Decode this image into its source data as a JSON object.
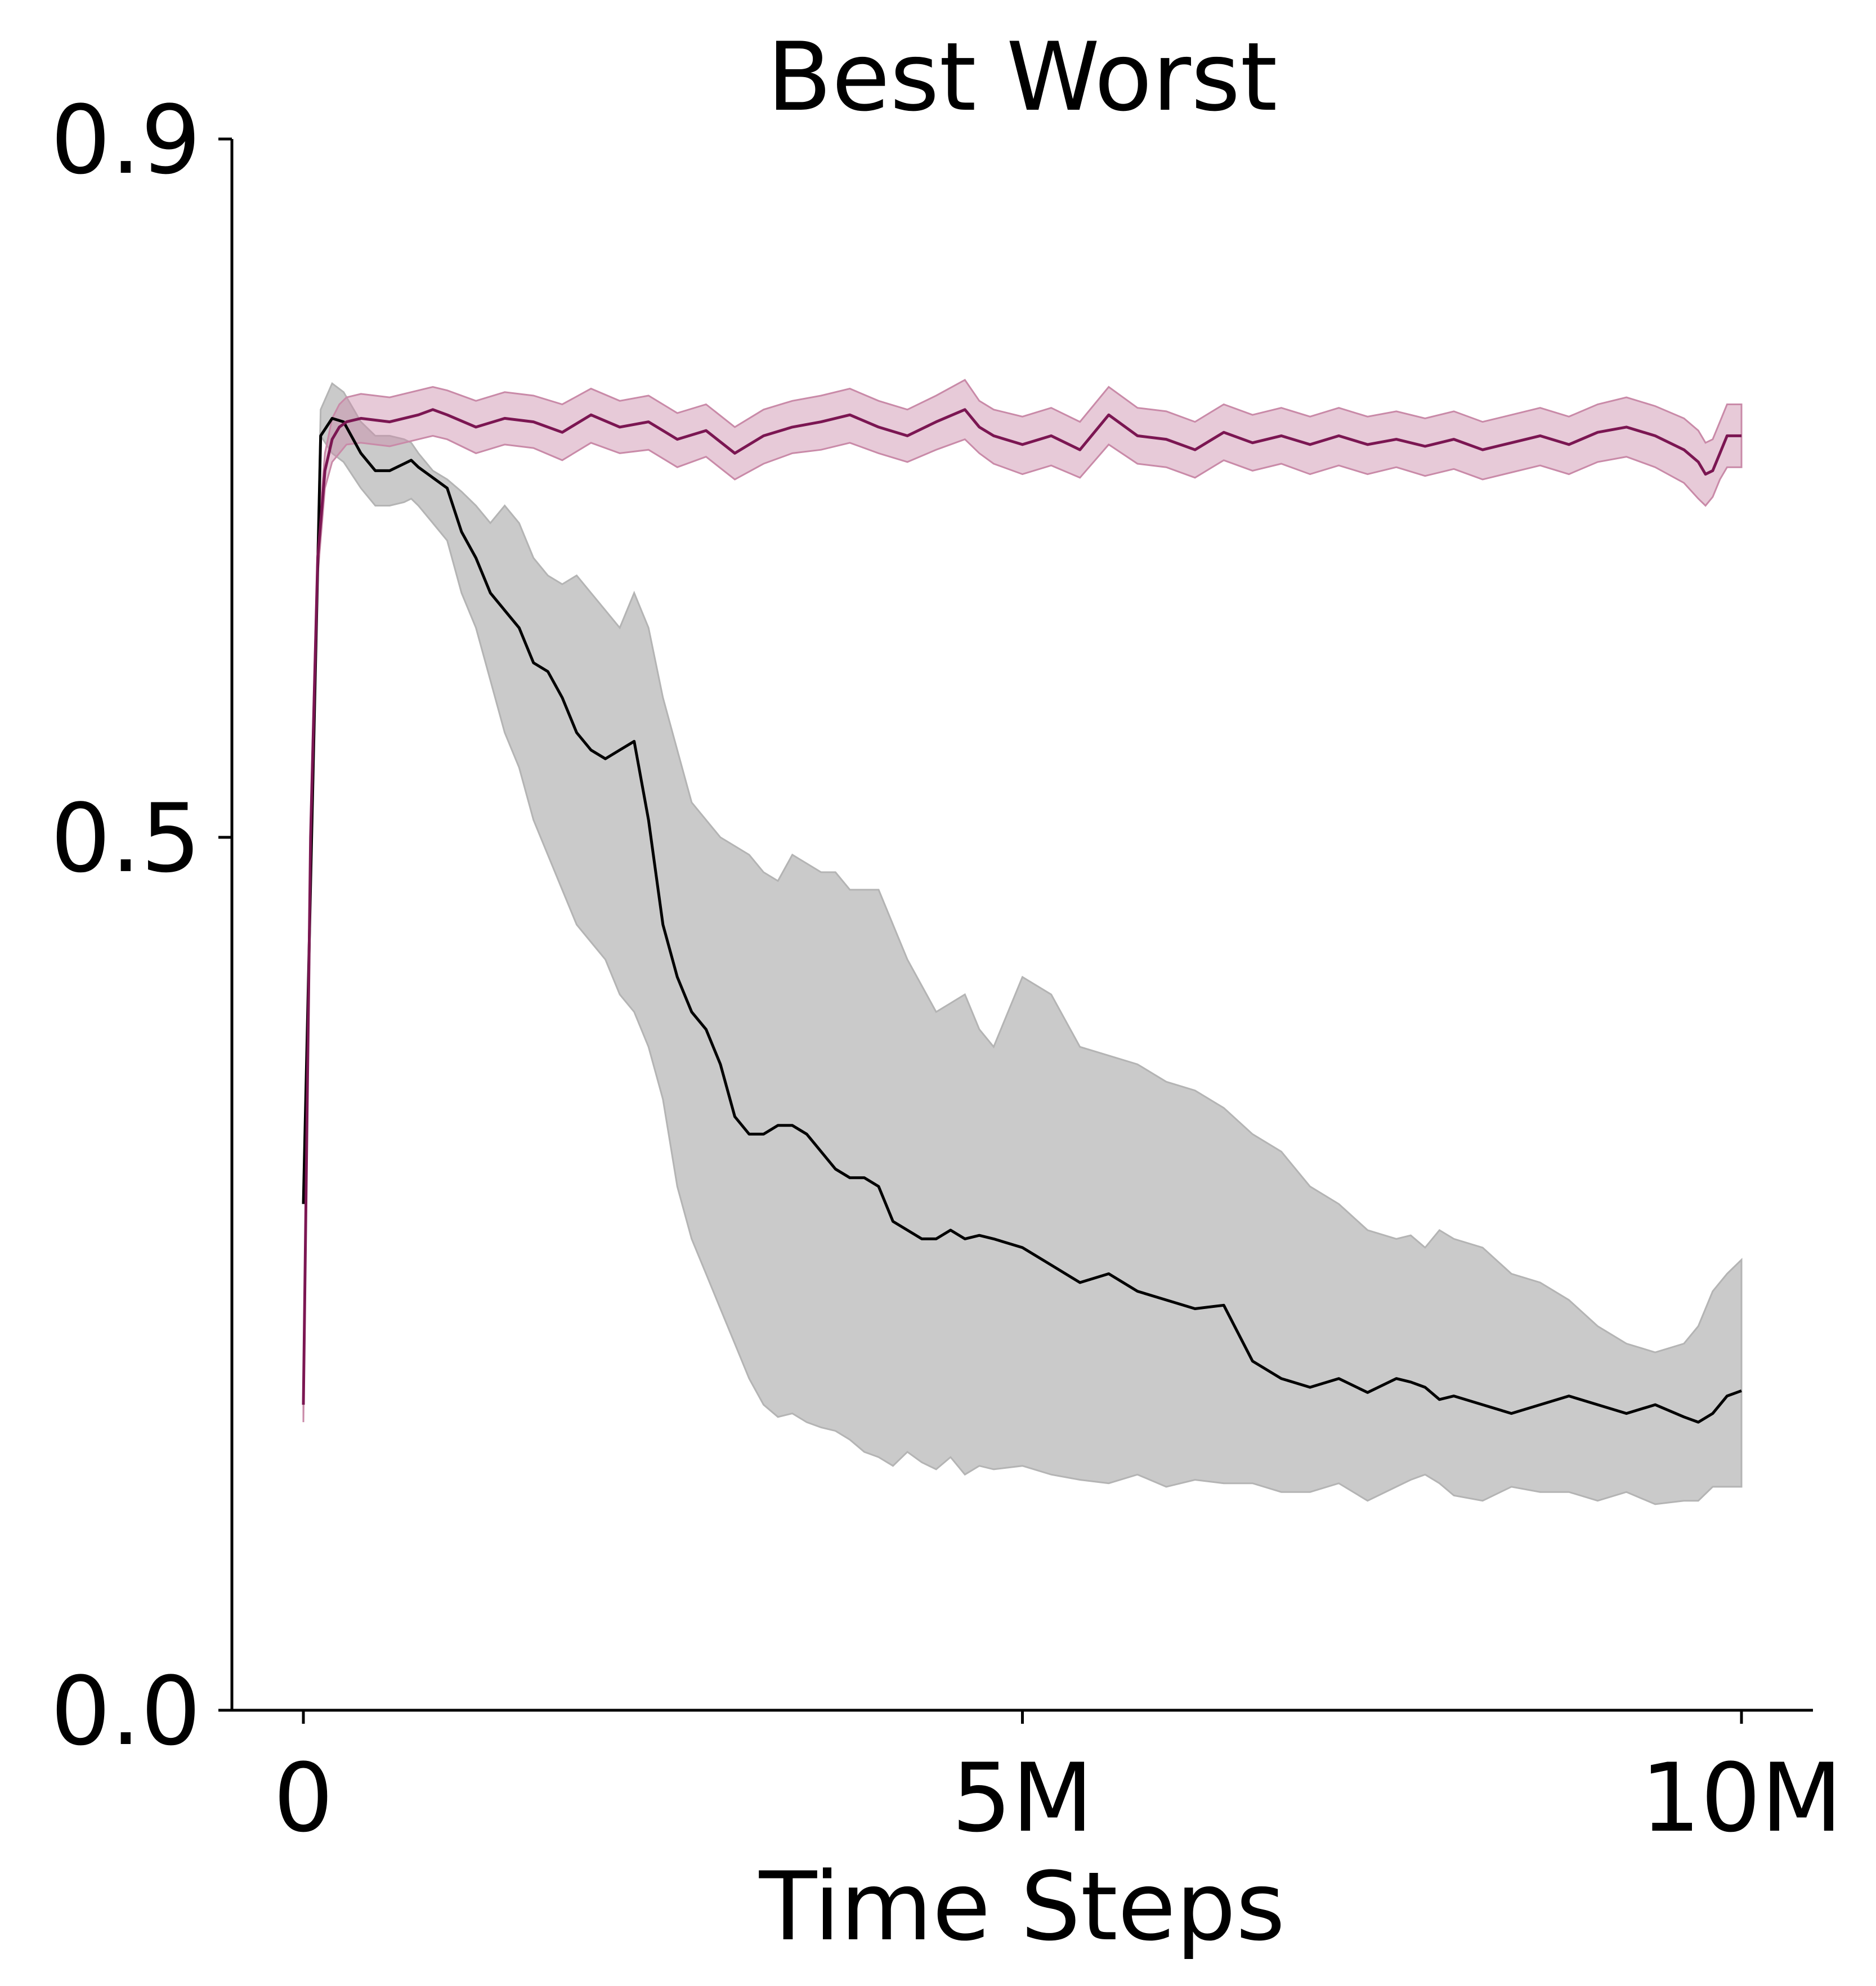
{
  "chart_data": {
    "type": "line",
    "title": "Best Worst",
    "xlabel": "Time Steps",
    "ylabel": "",
    "xlim": [
      -0.25,
      10.5
    ],
    "ylim": [
      0.0,
      0.9
    ],
    "x_ticks": [
      {
        "value": 0,
        "label": "0"
      },
      {
        "value": 5,
        "label": "5M"
      },
      {
        "value": 10,
        "label": "10M"
      }
    ],
    "y_ticks": [
      {
        "value": 0.0,
        "label": "0.0"
      },
      {
        "value": 0.5,
        "label": "0.5"
      },
      {
        "value": 0.9,
        "label": "0.9"
      }
    ],
    "grid": false,
    "legend": false,
    "series": [
      {
        "color": "#000000",
        "band_color": "#b4b4b4",
        "x": [
          0.0,
          0.12,
          0.2,
          0.28,
          0.4,
          0.5,
          0.6,
          0.7,
          0.75,
          0.8,
          0.9,
          1.0,
          1.1,
          1.2,
          1.3,
          1.4,
          1.5,
          1.6,
          1.7,
          1.8,
          1.9,
          2.0,
          2.1,
          2.2,
          2.3,
          2.4,
          2.5,
          2.6,
          2.7,
          2.8,
          2.9,
          3.0,
          3.1,
          3.2,
          3.3,
          3.4,
          3.5,
          3.6,
          3.7,
          3.8,
          3.9,
          4.0,
          4.1,
          4.2,
          4.3,
          4.4,
          4.5,
          4.6,
          4.7,
          4.8,
          5.0,
          5.2,
          5.4,
          5.6,
          5.8,
          6.0,
          6.2,
          6.4,
          6.6,
          6.8,
          7.0,
          7.2,
          7.4,
          7.6,
          7.7,
          7.8,
          7.9,
          8.0,
          8.2,
          8.4,
          8.6,
          8.8,
          9.0,
          9.2,
          9.4,
          9.6,
          9.7,
          9.8,
          9.9,
          10.0
        ],
        "y": [
          0.29,
          0.73,
          0.74,
          0.738,
          0.72,
          0.71,
          0.71,
          0.714,
          0.716,
          0.712,
          0.706,
          0.7,
          0.675,
          0.66,
          0.64,
          0.63,
          0.62,
          0.6,
          0.595,
          0.58,
          0.56,
          0.55,
          0.545,
          0.55,
          0.555,
          0.51,
          0.45,
          0.42,
          0.4,
          0.39,
          0.37,
          0.34,
          0.33,
          0.33,
          0.335,
          0.335,
          0.33,
          0.32,
          0.31,
          0.305,
          0.305,
          0.3,
          0.28,
          0.275,
          0.27,
          0.27,
          0.275,
          0.27,
          0.272,
          0.27,
          0.265,
          0.255,
          0.245,
          0.25,
          0.24,
          0.235,
          0.23,
          0.232,
          0.2,
          0.19,
          0.185,
          0.19,
          0.182,
          0.19,
          0.188,
          0.185,
          0.178,
          0.18,
          0.175,
          0.17,
          0.175,
          0.18,
          0.175,
          0.17,
          0.175,
          0.168,
          0.165,
          0.17,
          0.18,
          0.183
        ],
        "lower": [
          0.29,
          0.73,
          0.72,
          0.715,
          0.7,
          0.69,
          0.69,
          0.692,
          0.694,
          0.69,
          0.68,
          0.67,
          0.64,
          0.62,
          0.59,
          0.56,
          0.54,
          0.51,
          0.49,
          0.47,
          0.45,
          0.44,
          0.43,
          0.41,
          0.4,
          0.38,
          0.35,
          0.3,
          0.27,
          0.25,
          0.23,
          0.21,
          0.19,
          0.175,
          0.168,
          0.17,
          0.165,
          0.162,
          0.16,
          0.155,
          0.148,
          0.145,
          0.14,
          0.148,
          0.142,
          0.138,
          0.145,
          0.135,
          0.14,
          0.138,
          0.14,
          0.135,
          0.132,
          0.13,
          0.135,
          0.128,
          0.132,
          0.13,
          0.13,
          0.125,
          0.125,
          0.13,
          0.12,
          0.128,
          0.132,
          0.135,
          0.13,
          0.123,
          0.12,
          0.128,
          0.125,
          0.125,
          0.12,
          0.125,
          0.118,
          0.12,
          0.12,
          0.128,
          0.128,
          0.128
        ],
        "upper": [
          0.29,
          0.745,
          0.76,
          0.755,
          0.738,
          0.73,
          0.73,
          0.728,
          0.726,
          0.72,
          0.71,
          0.705,
          0.698,
          0.69,
          0.68,
          0.69,
          0.68,
          0.66,
          0.65,
          0.645,
          0.65,
          0.64,
          0.63,
          0.62,
          0.64,
          0.62,
          0.58,
          0.55,
          0.52,
          0.51,
          0.5,
          0.495,
          0.49,
          0.48,
          0.475,
          0.49,
          0.485,
          0.48,
          0.48,
          0.47,
          0.47,
          0.47,
          0.45,
          0.43,
          0.415,
          0.4,
          0.405,
          0.41,
          0.39,
          0.38,
          0.42,
          0.41,
          0.38,
          0.375,
          0.37,
          0.36,
          0.355,
          0.345,
          0.33,
          0.32,
          0.3,
          0.29,
          0.275,
          0.27,
          0.272,
          0.265,
          0.275,
          0.27,
          0.265,
          0.25,
          0.245,
          0.235,
          0.22,
          0.21,
          0.205,
          0.21,
          0.22,
          0.24,
          0.25,
          0.258
        ]
      },
      {
        "color": "#7b1652",
        "band_color": "#c98aa8",
        "x": [
          0.0,
          0.05,
          0.1,
          0.15,
          0.2,
          0.25,
          0.3,
          0.4,
          0.6,
          0.8,
          0.9,
          1.0,
          1.2,
          1.4,
          1.6,
          1.8,
          2.0,
          2.2,
          2.4,
          2.6,
          2.8,
          3.0,
          3.2,
          3.4,
          3.6,
          3.8,
          4.0,
          4.2,
          4.4,
          4.6,
          4.7,
          4.8,
          5.0,
          5.2,
          5.4,
          5.6,
          5.8,
          6.0,
          6.2,
          6.4,
          6.6,
          6.8,
          7.0,
          7.2,
          7.4,
          7.6,
          7.8,
          8.0,
          8.2,
          8.4,
          8.6,
          8.8,
          9.0,
          9.2,
          9.4,
          9.6,
          9.7,
          9.75,
          9.8,
          9.85,
          9.9,
          10.0
        ],
        "y": [
          0.175,
          0.5,
          0.66,
          0.71,
          0.728,
          0.735,
          0.738,
          0.74,
          0.738,
          0.742,
          0.745,
          0.742,
          0.735,
          0.74,
          0.738,
          0.732,
          0.742,
          0.735,
          0.738,
          0.728,
          0.733,
          0.72,
          0.73,
          0.735,
          0.738,
          0.742,
          0.735,
          0.73,
          0.738,
          0.745,
          0.735,
          0.73,
          0.725,
          0.73,
          0.722,
          0.742,
          0.73,
          0.728,
          0.722,
          0.732,
          0.726,
          0.73,
          0.725,
          0.73,
          0.725,
          0.728,
          0.724,
          0.728,
          0.722,
          0.726,
          0.73,
          0.725,
          0.732,
          0.735,
          0.73,
          0.722,
          0.715,
          0.708,
          0.71,
          0.72,
          0.73,
          0.73
        ],
        "lower": [
          0.165,
          0.49,
          0.65,
          0.7,
          0.715,
          0.72,
          0.725,
          0.726,
          0.724,
          0.728,
          0.73,
          0.728,
          0.72,
          0.725,
          0.723,
          0.716,
          0.726,
          0.72,
          0.722,
          0.712,
          0.718,
          0.705,
          0.714,
          0.72,
          0.722,
          0.726,
          0.72,
          0.715,
          0.722,
          0.728,
          0.72,
          0.714,
          0.708,
          0.713,
          0.706,
          0.725,
          0.714,
          0.712,
          0.706,
          0.716,
          0.71,
          0.714,
          0.708,
          0.713,
          0.708,
          0.712,
          0.707,
          0.711,
          0.705,
          0.709,
          0.713,
          0.708,
          0.715,
          0.718,
          0.712,
          0.703,
          0.694,
          0.69,
          0.695,
          0.705,
          0.712,
          0.712
        ],
        "upper": [
          0.185,
          0.51,
          0.67,
          0.72,
          0.74,
          0.748,
          0.752,
          0.754,
          0.752,
          0.756,
          0.758,
          0.756,
          0.75,
          0.755,
          0.753,
          0.748,
          0.757,
          0.75,
          0.753,
          0.743,
          0.748,
          0.735,
          0.745,
          0.75,
          0.753,
          0.757,
          0.75,
          0.745,
          0.753,
          0.762,
          0.75,
          0.745,
          0.741,
          0.746,
          0.738,
          0.758,
          0.746,
          0.744,
          0.738,
          0.748,
          0.742,
          0.746,
          0.741,
          0.746,
          0.741,
          0.744,
          0.74,
          0.744,
          0.738,
          0.742,
          0.746,
          0.741,
          0.748,
          0.752,
          0.747,
          0.74,
          0.733,
          0.726,
          0.728,
          0.738,
          0.748,
          0.748
        ]
      }
    ]
  }
}
